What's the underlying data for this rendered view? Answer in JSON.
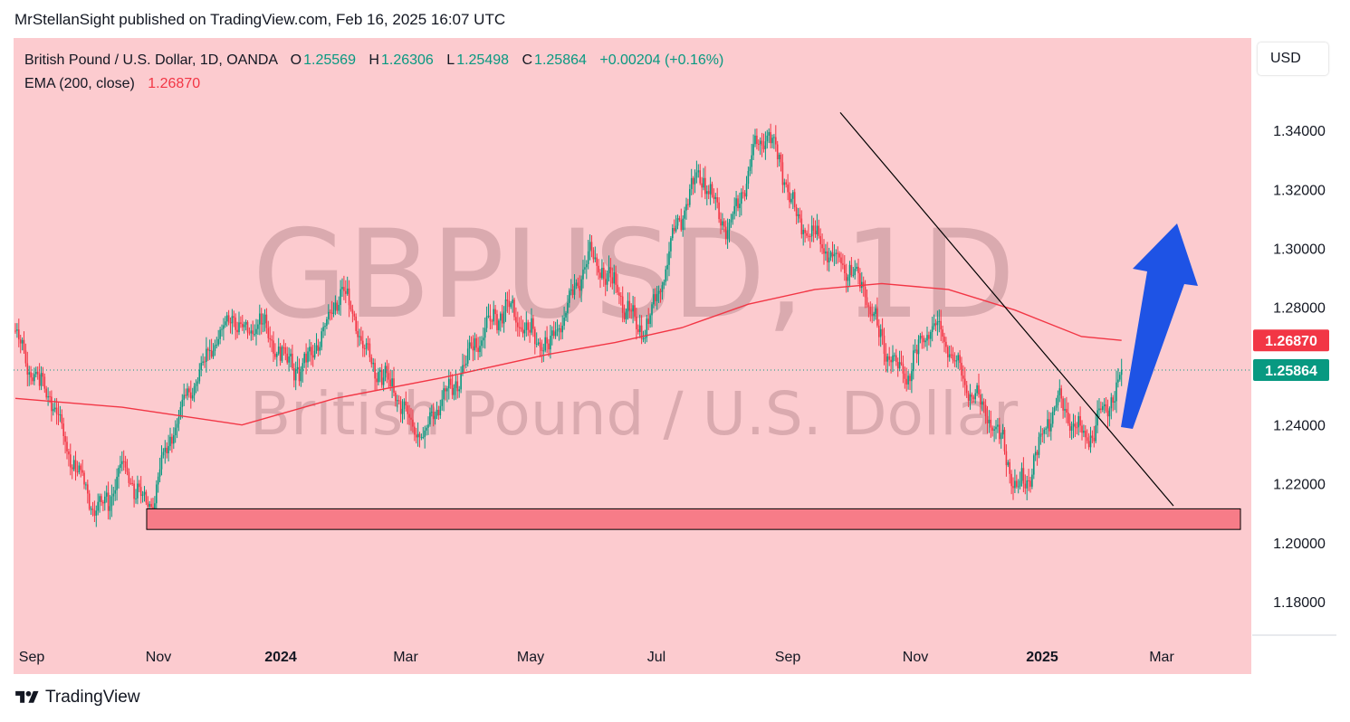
{
  "header": {
    "publisher_line": "MrStellanSight published on TradingView.com, Feb 16, 2025 16:07 UTC"
  },
  "legend": {
    "symbol": "British Pound / U.S. Dollar, 1D, OANDA",
    "open_label": "O",
    "open": "1.25569",
    "high_label": "H",
    "high": "1.26306",
    "low_label": "L",
    "low": "1.25498",
    "close_label": "C",
    "close": "1.25864",
    "change": "+0.00204 (+0.16%)",
    "indicator": "EMA (200, close)",
    "indicator_value": "1.26870"
  },
  "watermark": {
    "line1": "GBPUSD, 1D",
    "line2": "British Pound / U.S. Dollar"
  },
  "currency_button": "USD",
  "footer": {
    "brand": "TradingView"
  },
  "colors": {
    "background": "#fccbcf",
    "up": "#089981",
    "down": "#f23645",
    "ema": "#f23645",
    "support_zone": "#f77c88",
    "arrow": "#1e53e5",
    "last_price": "#089981"
  },
  "chart_data": {
    "type": "candlestick",
    "symbol": "GBPUSD",
    "timeframe": "1D",
    "x_ticks": [
      "Sep",
      "Nov",
      "2024",
      "Mar",
      "May",
      "Jul",
      "Sep",
      "Nov",
      "2025",
      "Mar"
    ],
    "y_ticks": [
      "1.34000",
      "1.32000",
      "1.30000",
      "1.28000",
      "1.24000",
      "1.22000",
      "1.20000",
      "1.18000"
    ],
    "ylim": [
      1.1686,
      1.3714
    ],
    "last_price": 1.25864,
    "ema_last": 1.2687,
    "price_path": [
      [
        0,
        1.272
      ],
      [
        6,
        1.262
      ],
      [
        14,
        1.254
      ],
      [
        22,
        1.248
      ],
      [
        30,
        1.232
      ],
      [
        38,
        1.222
      ],
      [
        46,
        1.212
      ],
      [
        54,
        1.214
      ],
      [
        62,
        1.226
      ],
      [
        70,
        1.218
      ],
      [
        78,
        1.212
      ],
      [
        86,
        1.228
      ],
      [
        94,
        1.242
      ],
      [
        102,
        1.252
      ],
      [
        110,
        1.262
      ],
      [
        118,
        1.27
      ],
      [
        126,
        1.278
      ],
      [
        134,
        1.27
      ],
      [
        142,
        1.276
      ],
      [
        150,
        1.268
      ],
      [
        158,
        1.262
      ],
      [
        166,
        1.258
      ],
      [
        174,
        1.266
      ],
      [
        182,
        1.276
      ],
      [
        190,
        1.286
      ],
      [
        198,
        1.274
      ],
      [
        206,
        1.262
      ],
      [
        214,
        1.256
      ],
      [
        222,
        1.25
      ],
      [
        230,
        1.24
      ],
      [
        238,
        1.236
      ],
      [
        246,
        1.248
      ],
      [
        254,
        1.252
      ],
      [
        262,
        1.262
      ],
      [
        270,
        1.27
      ],
      [
        278,
        1.276
      ],
      [
        286,
        1.28
      ],
      [
        294,
        1.274
      ],
      [
        302,
        1.27
      ],
      [
        310,
        1.266
      ],
      [
        318,
        1.276
      ],
      [
        326,
        1.288
      ],
      [
        334,
        1.298
      ],
      [
        342,
        1.292
      ],
      [
        350,
        1.286
      ],
      [
        358,
        1.276
      ],
      [
        366,
        1.272
      ],
      [
        374,
        1.286
      ],
      [
        382,
        1.302
      ],
      [
        390,
        1.316
      ],
      [
        398,
        1.326
      ],
      [
        406,
        1.316
      ],
      [
        414,
        1.306
      ],
      [
        422,
        1.318
      ],
      [
        430,
        1.334
      ],
      [
        438,
        1.34
      ],
      [
        446,
        1.326
      ],
      [
        454,
        1.31
      ],
      [
        462,
        1.306
      ],
      [
        470,
        1.3
      ],
      [
        478,
        1.296
      ],
      [
        486,
        1.292
      ],
      [
        494,
        1.286
      ],
      [
        502,
        1.27
      ],
      [
        510,
        1.262
      ],
      [
        518,
        1.256
      ],
      [
        526,
        1.268
      ],
      [
        534,
        1.274
      ],
      [
        542,
        1.268
      ],
      [
        550,
        1.256
      ],
      [
        558,
        1.25
      ],
      [
        566,
        1.242
      ],
      [
        574,
        1.234
      ],
      [
        582,
        1.218
      ],
      [
        590,
        1.224
      ],
      [
        598,
        1.238
      ],
      [
        606,
        1.248
      ],
      [
        614,
        1.242
      ],
      [
        622,
        1.234
      ],
      [
        630,
        1.242
      ],
      [
        638,
        1.25
      ],
      [
        643,
        1.2586
      ]
    ],
    "ema_200": [
      [
        0,
        1.249
      ],
      [
        80,
        1.246
      ],
      [
        170,
        1.24
      ],
      [
        240,
        1.249
      ],
      [
        320,
        1.256
      ],
      [
        400,
        1.264
      ],
      [
        450,
        1.268
      ],
      [
        500,
        1.273
      ],
      [
        550,
        1.281
      ],
      [
        600,
        1.286
      ],
      [
        650,
        1.288
      ],
      [
        700,
        1.286
      ],
      [
        750,
        1.279
      ],
      [
        800,
        1.27
      ],
      [
        830,
        1.2687
      ]
    ],
    "support_zone": {
      "low": 1.2045,
      "high": 1.2115
    },
    "trendline": [
      [
        1.3461
      ],
      [
        1.2125
      ]
    ]
  }
}
